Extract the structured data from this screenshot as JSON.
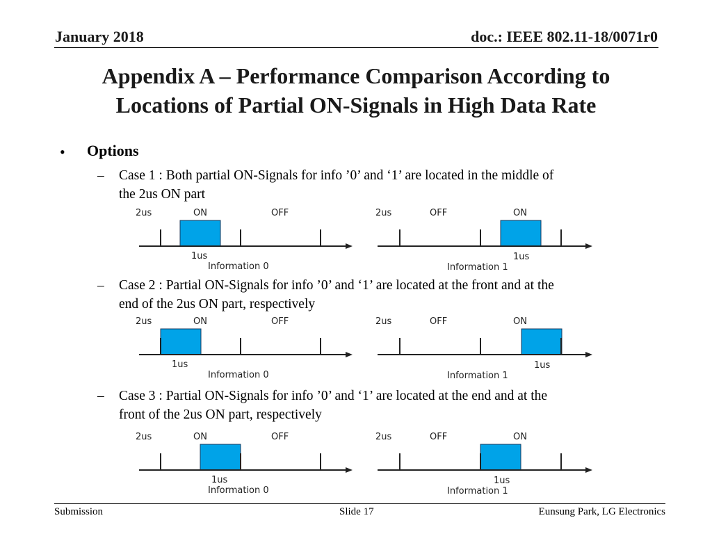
{
  "header": {
    "date": "January 2018",
    "doc_id": "doc.: IEEE 802.11-18/0071r0"
  },
  "title": {
    "line1": "Appendix A – Performance Comparison According to",
    "line2": "Locations of Partial ON-Signals in High Data Rate"
  },
  "bullet": {
    "marker": "•",
    "label": "Options"
  },
  "dash": "–",
  "cases": [
    {
      "text_line1": "Case 1 : Both partial ON-Signals for info ’0’ and ‘1’ are located in the middle of",
      "text_line2": "the 2us ON part",
      "diagrams": [
        {
          "label_2us": "2us",
          "label_on": "ON",
          "label_off": "OFF",
          "label_1us": "1us",
          "caption": "Information 0",
          "pulse_position": "middle of ON segment"
        },
        {
          "label_2us": "2us",
          "label_off": "OFF",
          "label_on": "ON",
          "label_1us": "1us",
          "caption": "Information 1",
          "pulse_position": "middle of ON segment"
        }
      ]
    },
    {
      "text_line1": "Case 2 : Partial ON-Signals for info ’0’ and ‘1’ are located at the front and at the",
      "text_line2": "end of the 2us ON part, respectively",
      "diagrams": [
        {
          "label_2us": "2us",
          "label_on": "ON",
          "label_off": "OFF",
          "label_1us": "1us",
          "caption": "Information 0",
          "pulse_position": "front of ON segment"
        },
        {
          "label_2us": "2us",
          "label_off": "OFF",
          "label_on": "ON",
          "label_1us": "1us",
          "caption": "Information 1",
          "pulse_position": "end of ON segment"
        }
      ]
    },
    {
      "text_line1": "Case 3 : Partial ON-Signals for info ’0’ and ‘1’ are located at the end and at the",
      "text_line2": "front of the 2us ON part, respectively",
      "diagrams": [
        {
          "label_2us": "2us",
          "label_on": "ON",
          "label_off": "OFF",
          "label_1us": "1us",
          "caption": "Information 0",
          "pulse_position": "end of ON segment"
        },
        {
          "label_2us": "2us",
          "label_off": "OFF",
          "label_on": "ON",
          "label_1us": "1us",
          "caption": "Information 1",
          "pulse_position": "front of ON segment"
        }
      ]
    }
  ],
  "colors": {
    "pulse_fill": "#00a3e8",
    "pulse_stroke": "#1a3a5c",
    "axis": "#222222"
  },
  "footer": {
    "left": "Submission",
    "center": "Slide 17",
    "right": "Eunsung Park, LG Electronics"
  }
}
